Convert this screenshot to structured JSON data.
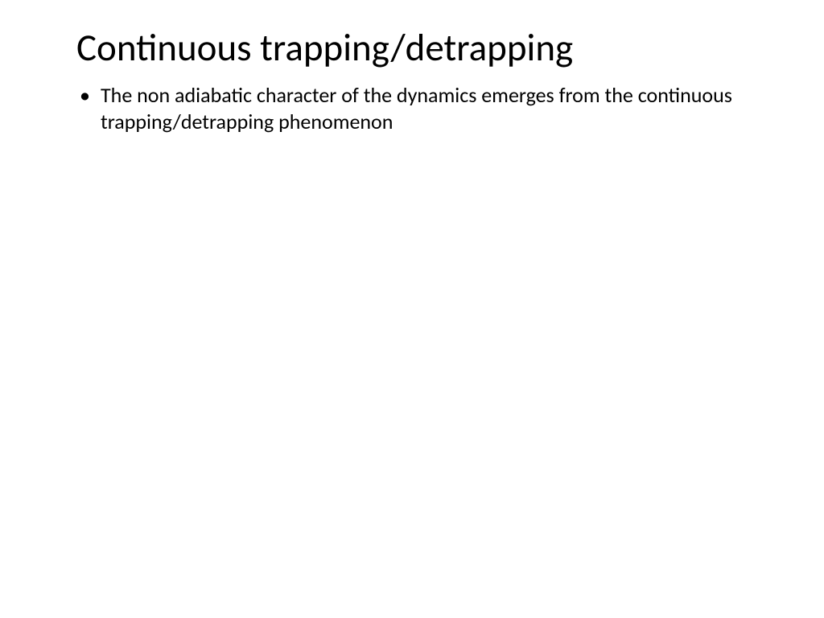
{
  "slide": {
    "title": "Continuous trapping/detrapping",
    "bullets": [
      "The non adiabatic character of the dynamics emerges from the continuous trapping/detrapping phenomenon"
    ]
  },
  "styling": {
    "background_color": "#ffffff",
    "text_color": "#000000",
    "title_fontsize": 47,
    "body_fontsize": 26,
    "font_family": "Calibri"
  }
}
